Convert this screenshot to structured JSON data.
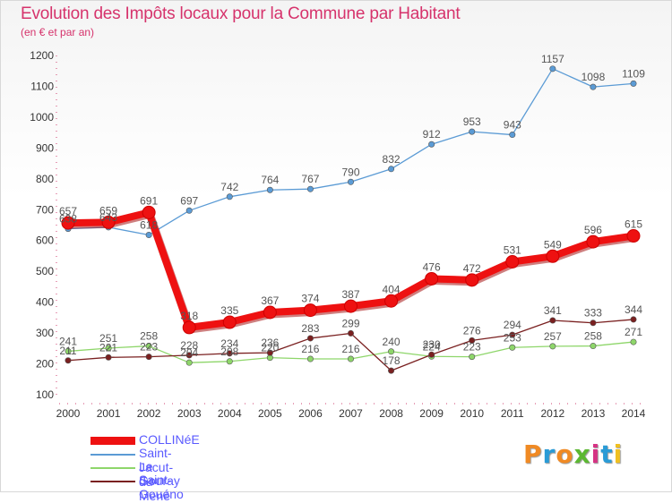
{
  "header": {
    "title": "Evolution des Impôts locaux pour la Commune par Habitant",
    "subtitle": "(en € et par an)"
  },
  "brand": {
    "text": "Proxiti",
    "colors": [
      "#f08a24",
      "#2a9bd6",
      "#f08a24",
      "#5cb832",
      "#d63384",
      "#2a9bd6",
      "#f0c020"
    ]
  },
  "chart_data": {
    "type": "line",
    "x": [
      2000,
      2001,
      2002,
      2003,
      2004,
      2005,
      2006,
      2007,
      2008,
      2009,
      2010,
      2011,
      2012,
      2013,
      2014
    ],
    "ylim": [
      100,
      1200
    ],
    "yticks": [
      100,
      200,
      300,
      400,
      500,
      600,
      700,
      800,
      900,
      1000,
      1100,
      1200
    ],
    "grid": false,
    "legend_position": "bottom-left",
    "series": [
      {
        "name": "Saint-Jacut-du-Mené",
        "color": "#5b9bd5",
        "values": [
          638,
          643,
          618,
          697,
          742,
          764,
          767,
          790,
          832,
          912,
          953,
          943,
          1157,
          1098,
          1109
        ],
        "labels": [
          "638",
          "643",
          "618",
          "697",
          "742",
          "764",
          "767",
          "790",
          "832",
          "912",
          "953",
          "943",
          "1157",
          "1098",
          "1109"
        ]
      },
      {
        "name": "Le Gouray",
        "color": "#8ed66a",
        "values": [
          241,
          251,
          258,
          204,
          208,
          220,
          216,
          216,
          240,
          224,
          223,
          253,
          257,
          258,
          271
        ],
        "labels": [
          "241",
          "251",
          "258",
          "204",
          "208",
          "220",
          "216",
          "216",
          "240",
          "224",
          "223",
          "253",
          "257",
          "258",
          "271"
        ]
      },
      {
        "name": "Saint-Gouéno",
        "color": "#7a2020",
        "values": [
          211,
          221,
          223,
          228,
          234,
          236,
          283,
          299,
          178,
          230,
          276,
          294,
          341,
          333,
          344
        ],
        "labels": [
          "211",
          "221",
          "223",
          "228",
          "234",
          "236",
          "283",
          "299",
          "178",
          "230",
          "276",
          "294",
          "341",
          "333",
          "344"
        ]
      },
      {
        "name": "COLLINéE",
        "color": "#ee1111",
        "values": [
          657,
          659,
          691,
          318,
          335,
          367,
          374,
          387,
          404,
          476,
          472,
          531,
          549,
          596,
          615
        ],
        "labels": [
          "657",
          "659",
          "691",
          "318",
          "335",
          "367",
          "374",
          "387",
          "404",
          "476",
          "472",
          "531",
          "549",
          "596",
          "615"
        ]
      }
    ],
    "legend": [
      "COLLINéE",
      "Saint-Jacut-du-Mené",
      "Le Gouray",
      "Saint-Gouéno"
    ]
  }
}
